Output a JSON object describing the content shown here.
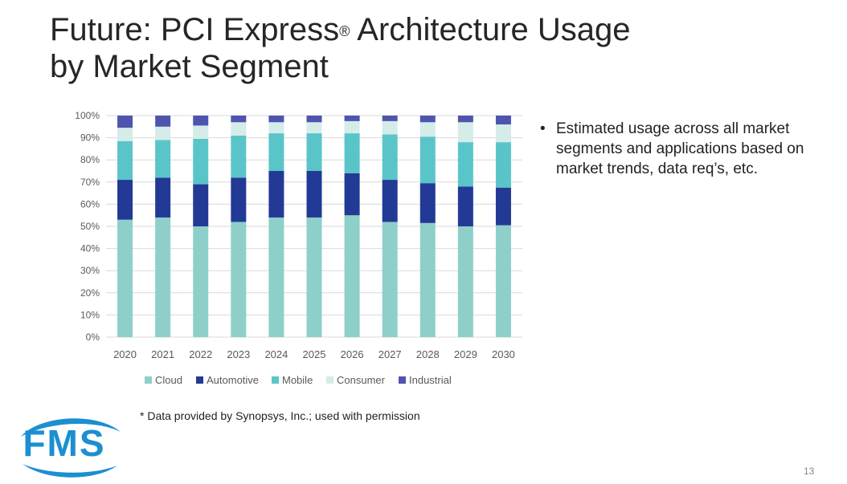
{
  "slide": {
    "title_line1": "Future: PCI Express",
    "title_reg": "®",
    "title_line1_end": " Architecture Usage",
    "title_line2": "by Market Segment",
    "bullet_marker": "•",
    "bullet_text": "Estimated usage across all market segments and applications based on market trends, data req’s, etc.",
    "footnote": "* Data provided by Synopsys, Inc.; used with permission",
    "logo_text": "FMS",
    "page_number": "13"
  },
  "chart_data": {
    "type": "bar",
    "stacked": true,
    "categories": [
      "2020",
      "2021",
      "2022",
      "2023",
      "2024",
      "2025",
      "2026",
      "2027",
      "2028",
      "2029",
      "2030"
    ],
    "series": [
      {
        "name": "Cloud",
        "color": "#8ecfc9",
        "values": [
          53,
          54,
          50,
          52,
          54,
          54,
          55,
          52,
          51.5,
          50,
          50.5
        ]
      },
      {
        "name": "Automotive",
        "color": "#223a96",
        "values": [
          18,
          18,
          19,
          20,
          21,
          21,
          19,
          19,
          18,
          18,
          17
        ]
      },
      {
        "name": "Mobile",
        "color": "#5ac5c9",
        "values": [
          17.5,
          17,
          20.5,
          19,
          17,
          17,
          18,
          20.5,
          21,
          20,
          20.5
        ]
      },
      {
        "name": "Consumer",
        "color": "#d5ece9",
        "values": [
          6,
          6,
          6,
          6,
          5,
          5,
          5.5,
          6,
          6.5,
          9,
          8
        ]
      },
      {
        "name": "Industrial",
        "color": "#4e55ad",
        "values": [
          5.5,
          5,
          4.5,
          3,
          3,
          3,
          2.5,
          2.5,
          3,
          3,
          4
        ]
      }
    ],
    "yticks": [
      "0%",
      "10%",
      "20%",
      "30%",
      "40%",
      "50%",
      "60%",
      "70%",
      "80%",
      "90%",
      "100%"
    ],
    "ylim": [
      0,
      100
    ],
    "legend_position": "bottom"
  }
}
